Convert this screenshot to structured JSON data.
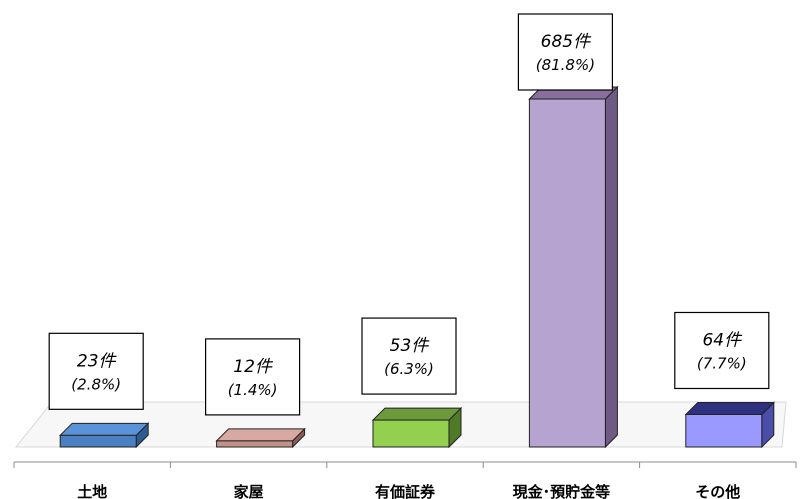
{
  "chart_data": {
    "type": "bar",
    "categories": [
      "土地",
      "家屋",
      "有価証券",
      "現金･預貯金等",
      "その他"
    ],
    "values": [
      23,
      12,
      53,
      685,
      64
    ],
    "count_labels": [
      "23件",
      "12件",
      "53件",
      "685件",
      "64件"
    ],
    "percent_labels": [
      "(2.8%)",
      "(1.4%)",
      "(6.3%)",
      "(81.8%)",
      "(7.7%)"
    ],
    "colors": [
      {
        "top": "#5b93d8",
        "front": "#4a7fc1",
        "side": "#2d5b93"
      },
      {
        "top": "#d8a9a3",
        "front": "#c29188",
        "side": "#8e5c55"
      },
      {
        "top": "#6d9a3c",
        "front": "#93d050",
        "side": "#4f7a28"
      },
      {
        "top": "#8a6f9e",
        "front": "#b7a3cf",
        "side": "#6f5a86"
      },
      {
        "top": "#2e3180",
        "front": "#9999ff",
        "side": "#4b4ea8"
      }
    ],
    "title": "",
    "xlabel": "",
    "ylabel": "",
    "grid": false,
    "legend": "none"
  }
}
